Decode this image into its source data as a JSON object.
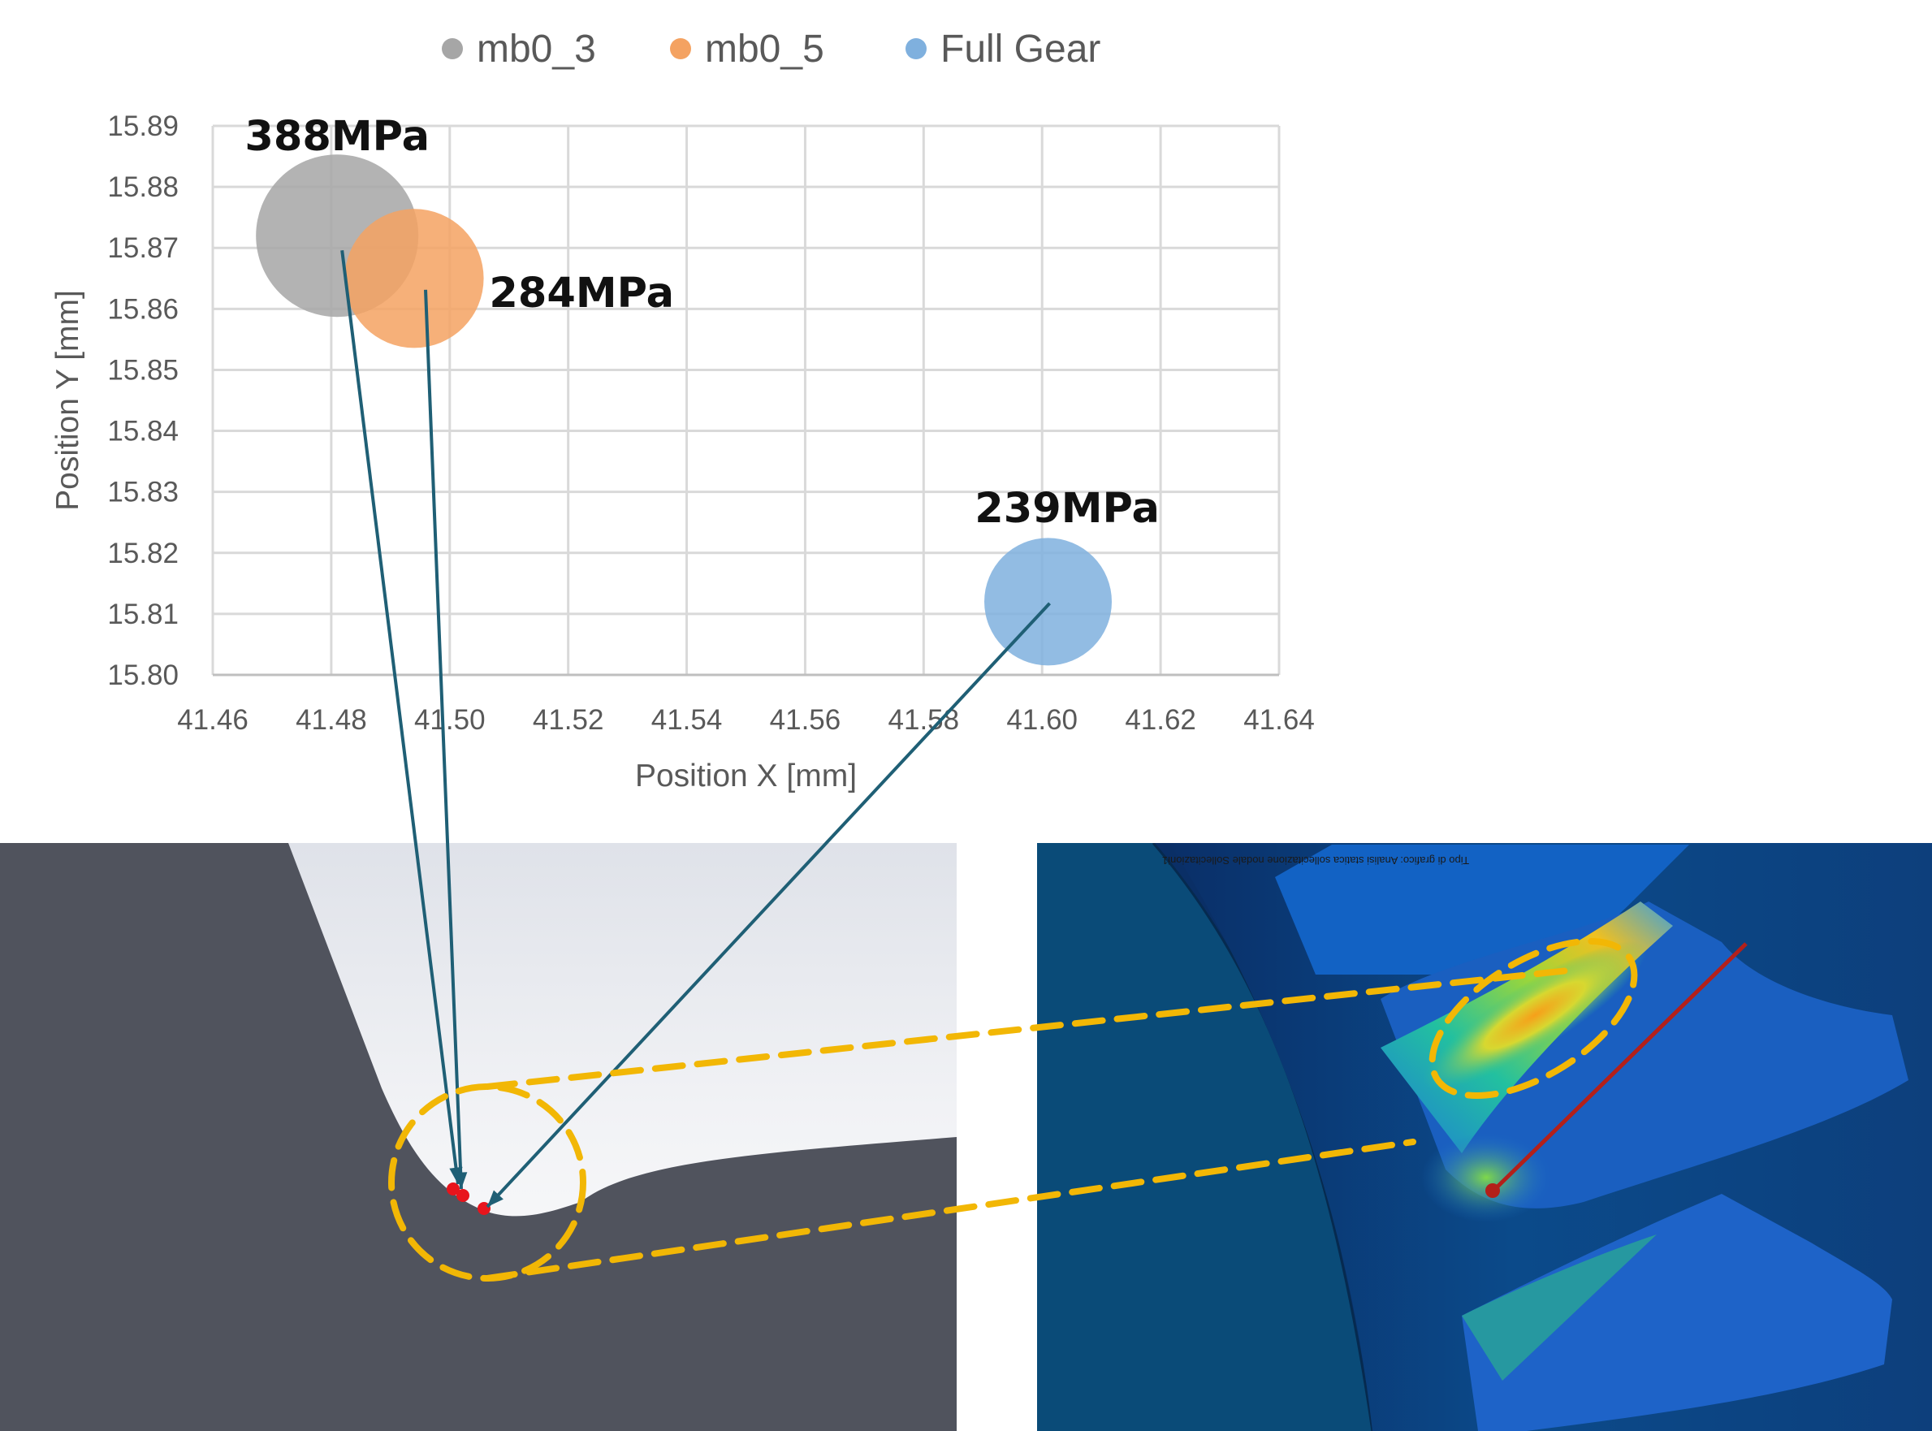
{
  "chart_data": {
    "type": "scatter",
    "xlabel": "Position X [mm]",
    "ylabel": "Position Y [mm]",
    "xlim": [
      41.46,
      41.64
    ],
    "ylim": [
      15.8,
      15.89
    ],
    "x_ticks": [
      "41.46",
      "41.48",
      "41.50",
      "41.52",
      "41.54",
      "41.56",
      "41.58",
      "41.60",
      "41.62",
      "41.64"
    ],
    "y_ticks": [
      "15.89",
      "15.88",
      "15.87",
      "15.86",
      "15.85",
      "15.84",
      "15.83",
      "15.82",
      "15.81",
      "15.80"
    ],
    "grid": true,
    "legend_position": "top",
    "series": [
      {
        "name": "mb0_3",
        "color": "#a6a6a6",
        "x": 41.481,
        "y": 15.872,
        "size": 388,
        "label": "388MPa"
      },
      {
        "name": "mb0_5",
        "color": "#f4a261",
        "x": 41.494,
        "y": 15.865,
        "size": 284,
        "label": "284MPa"
      },
      {
        "name": "Full Gear",
        "color": "#7fb0de",
        "x": 41.601,
        "y": 15.812,
        "size": 239,
        "label": "239MPa"
      }
    ]
  },
  "colors": {
    "gear_body": "#50535d",
    "leader_line": "#1f5f75",
    "highlight": "#f2b705",
    "marker": "#e8141c"
  },
  "fea_image": {
    "caption": "Tipo di grafico: Analisi statica sollecitazione nodale Sollecitazioni1"
  }
}
